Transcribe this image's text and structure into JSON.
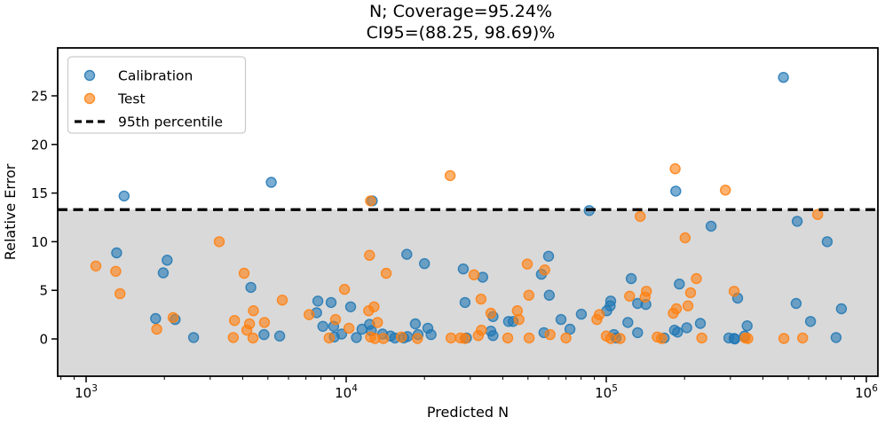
{
  "chart_data": {
    "type": "scatter",
    "title_lines": [
      "N; Coverage=95.24%",
      "CI95=(88.25, 98.69)%"
    ],
    "coverage_pct": 95.24,
    "ci95_pct": [
      88.25,
      98.69
    ],
    "xlabel": "Predicted N",
    "ylabel": "Relative Error",
    "x_scale": "log",
    "x_tick_exponents": [
      3,
      4,
      5,
      6
    ],
    "x_tick_base": "10",
    "y_ticks": [
      0,
      5,
      10,
      15,
      20,
      25
    ],
    "x_range": [
      777,
      1110000
    ],
    "y_range": [
      -3.8,
      29.9
    ],
    "grid": false,
    "legend_position": "upper left",
    "legend": [
      {
        "label": "Calibration",
        "marker": "dot",
        "color": "#1f77b4"
      },
      {
        "label": "Test",
        "marker": "dot",
        "color": "#ff7f0e"
      },
      {
        "label": "95th percentile",
        "marker": "dashed-line",
        "color": "#000000"
      }
    ],
    "percentile_line": {
      "label": "95th percentile",
      "value": 13.3,
      "style": "dashed",
      "color": "#000000"
    },
    "shaded_region": {
      "from": -3.8,
      "to": 13.3,
      "color": "#d9d9d9"
    },
    "series": [
      {
        "name": "Calibration",
        "color": "#1f77b4",
        "points": [
          [
            1400,
            14.7
          ],
          [
            5150,
            16.1
          ],
          [
            12600,
            14.2
          ],
          [
            185000,
            15.2
          ],
          [
            480000,
            26.9
          ],
          [
            86000,
            13.2
          ],
          [
            253000,
            11.6
          ],
          [
            542000,
            12.1
          ],
          [
            707000,
            10.0
          ],
          [
            1310,
            8.85
          ],
          [
            2050,
            8.1
          ],
          [
            1980,
            6.8
          ],
          [
            4300,
            5.3
          ],
          [
            1850,
            2.1
          ],
          [
            2200,
            2.0
          ],
          [
            2590,
            0.15
          ],
          [
            4830,
            0.45
          ],
          [
            5550,
            0.3
          ],
          [
            17100,
            8.7
          ],
          [
            20000,
            7.75
          ],
          [
            28200,
            7.2
          ],
          [
            33500,
            6.35
          ],
          [
            7780,
            3.9
          ],
          [
            8750,
            3.75
          ],
          [
            7700,
            2.7
          ],
          [
            10400,
            3.3
          ],
          [
            8130,
            1.3
          ],
          [
            8950,
            1.3
          ],
          [
            9000,
            0.2
          ],
          [
            9600,
            0.5
          ],
          [
            10950,
            0.15
          ],
          [
            11500,
            1.0
          ],
          [
            12300,
            1.5
          ],
          [
            12500,
            0.85
          ],
          [
            13800,
            0.5
          ],
          [
            14800,
            0.3
          ],
          [
            15400,
            0.1
          ],
          [
            17200,
            0.25
          ],
          [
            16650,
            0.1
          ],
          [
            18450,
            1.55
          ],
          [
            18900,
            0.45
          ],
          [
            20600,
            1.1
          ],
          [
            21200,
            0.45
          ],
          [
            29000,
            0.1
          ],
          [
            28650,
            3.75
          ],
          [
            60000,
            8.5
          ],
          [
            56300,
            6.65
          ],
          [
            124700,
            6.2
          ],
          [
            60400,
            4.5
          ],
          [
            142000,
            3.55
          ],
          [
            132000,
            3.65
          ],
          [
            104000,
            3.9
          ],
          [
            103500,
            3.4
          ],
          [
            100500,
            2.9
          ],
          [
            80200,
            2.55
          ],
          [
            36700,
            2.3
          ],
          [
            42100,
            1.8
          ],
          [
            43800,
            1.8
          ],
          [
            36000,
            0.8
          ],
          [
            36700,
            0.35
          ],
          [
            57600,
            0.65
          ],
          [
            67000,
            2.0
          ],
          [
            72500,
            1.0
          ],
          [
            107000,
            0.45
          ],
          [
            109000,
            0.1
          ],
          [
            121000,
            1.7
          ],
          [
            132000,
            0.65
          ],
          [
            167000,
            0.1
          ],
          [
            183000,
            0.9
          ],
          [
            188000,
            0.7
          ],
          [
            204000,
            1.15
          ],
          [
            191000,
            5.65
          ],
          [
            320000,
            4.2
          ],
          [
            537000,
            3.65
          ],
          [
            610000,
            1.8
          ],
          [
            802000,
            3.1
          ],
          [
            765000,
            0.15
          ],
          [
            230000,
            1.6
          ],
          [
            296000,
            0.1
          ],
          [
            310000,
            0.05
          ],
          [
            312000,
            0.0
          ],
          [
            340000,
            0.3
          ],
          [
            348000,
            1.35
          ]
        ]
      },
      {
        "name": "Test",
        "color": "#ff7f0e",
        "points": [
          [
            12400,
            14.2
          ],
          [
            25100,
            16.8
          ],
          [
            184000,
            17.5
          ],
          [
            287000,
            15.3
          ],
          [
            135000,
            12.6
          ],
          [
            650000,
            12.8
          ],
          [
            1090,
            7.5
          ],
          [
            1300,
            6.95
          ],
          [
            1350,
            4.65
          ],
          [
            3250,
            10.0
          ],
          [
            4050,
            6.75
          ],
          [
            2160,
            2.2
          ],
          [
            1870,
            1.0
          ],
          [
            3720,
            1.9
          ],
          [
            4250,
            1.55
          ],
          [
            4150,
            0.9
          ],
          [
            3680,
            0.15
          ],
          [
            4400,
            2.9
          ],
          [
            4850,
            1.7
          ],
          [
            4380,
            0.1
          ],
          [
            12300,
            8.6
          ],
          [
            14250,
            6.75
          ],
          [
            31000,
            6.6
          ],
          [
            9850,
            5.1
          ],
          [
            5680,
            4.0
          ],
          [
            7200,
            2.5
          ],
          [
            9100,
            2.0
          ],
          [
            10250,
            1.1
          ],
          [
            8600,
            0.1
          ],
          [
            12200,
            2.9
          ],
          [
            12800,
            3.3
          ],
          [
            13200,
            1.7
          ],
          [
            12400,
            0.2
          ],
          [
            12900,
            0.05
          ],
          [
            13900,
            0.05
          ],
          [
            16300,
            0.2
          ],
          [
            18800,
            0.05
          ],
          [
            25300,
            0.1
          ],
          [
            27500,
            0.1
          ],
          [
            28600,
            0.05
          ],
          [
            32200,
            0.35
          ],
          [
            33100,
            0.9
          ],
          [
            201000,
            10.4
          ],
          [
            49700,
            7.7
          ],
          [
            58000,
            7.1
          ],
          [
            33000,
            4.1
          ],
          [
            50400,
            4.5
          ],
          [
            142600,
            4.9
          ],
          [
            141000,
            4.3
          ],
          [
            123000,
            4.4
          ],
          [
            94000,
            2.5
          ],
          [
            92000,
            2.0
          ],
          [
            36000,
            2.65
          ],
          [
            46200,
            2.0
          ],
          [
            45500,
            2.9
          ],
          [
            41800,
            0.1
          ],
          [
            50500,
            0.1
          ],
          [
            60800,
            0.45
          ],
          [
            70000,
            0.1
          ],
          [
            100000,
            0.3
          ],
          [
            104000,
            0.05
          ],
          [
            113000,
            0.05
          ],
          [
            157000,
            0.2
          ],
          [
            163000,
            0.05
          ],
          [
            206000,
            3.4
          ],
          [
            186000,
            3.1
          ],
          [
            181000,
            2.65
          ],
          [
            211000,
            4.75
          ],
          [
            222000,
            6.2
          ],
          [
            310000,
            4.9
          ],
          [
            233000,
            0.1
          ],
          [
            342000,
            0.1
          ],
          [
            350000,
            0.05
          ],
          [
            482000,
            0.05
          ],
          [
            569000,
            0.1
          ]
        ]
      }
    ]
  }
}
